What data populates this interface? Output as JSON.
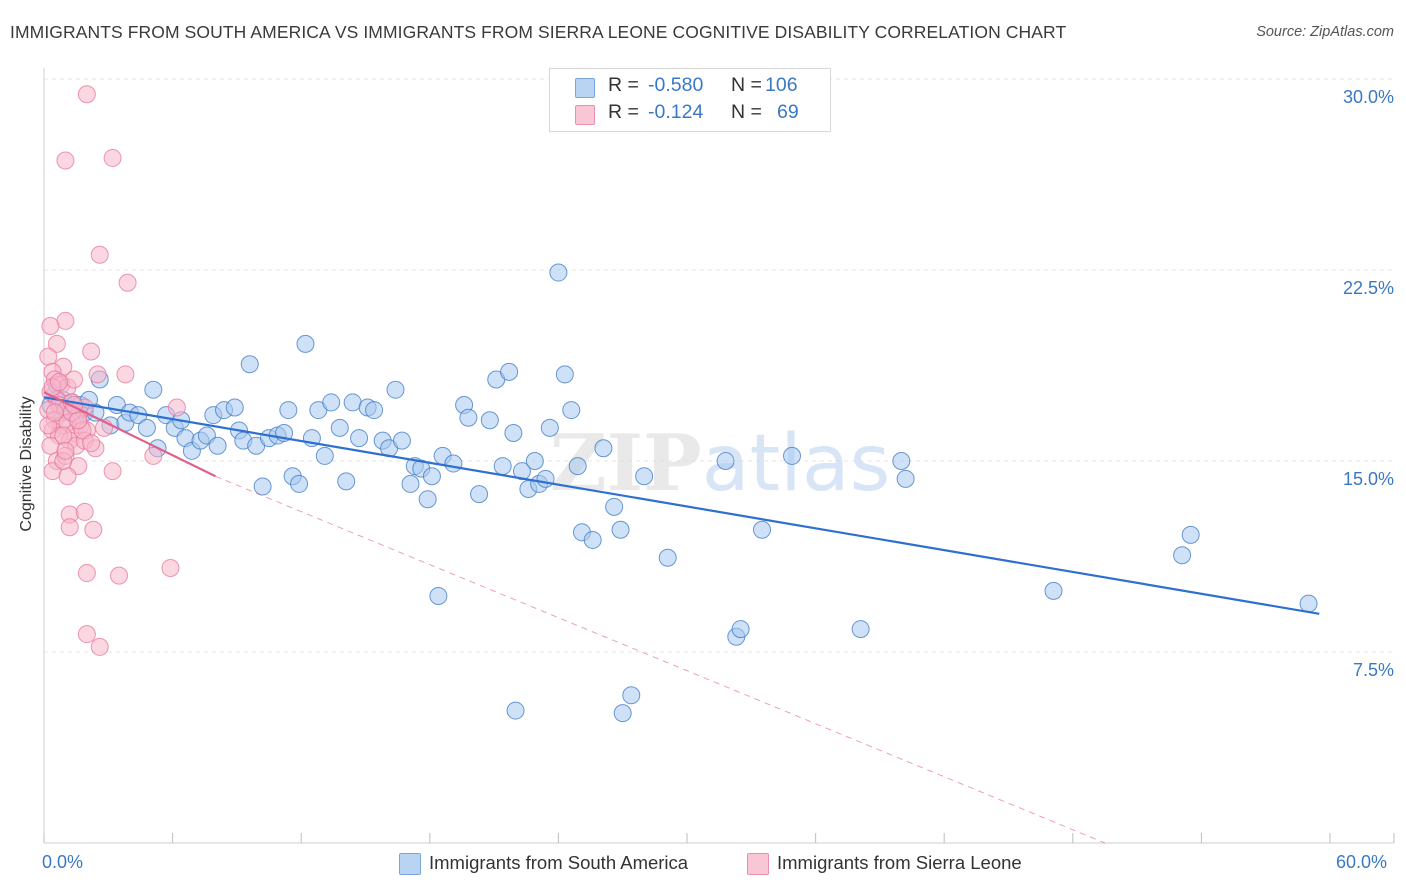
{
  "title": "IMMIGRANTS FROM SOUTH AMERICA VS IMMIGRANTS FROM SIERRA LEONE COGNITIVE DISABILITY CORRELATION CHART",
  "source": "Source: ZipAtlas.com",
  "watermark": "ZIPatlas",
  "colors": {
    "blue": "#3b78c4",
    "blue_fill": "#a8c8f0",
    "blue_line": "#2e6fd0",
    "pink": "#e7749a",
    "pink_fill": "#f7b6ca",
    "pink_line": "#e0608c",
    "grid": "#e6e6e6"
  },
  "legend": {
    "rows": [
      {
        "r_label": "R =",
        "r_value": "-0.580",
        "n_label": "N =",
        "n_value": "106"
      },
      {
        "r_label": "R =",
        "r_value": "-0.124",
        "n_label": "N =",
        "n_value": "69"
      }
    ]
  },
  "bottom_legend": [
    "Immigrants from South America",
    "Immigrants from Sierra Leone"
  ],
  "chart_data": {
    "type": "scatter",
    "title": "IMMIGRANTS FROM SOUTH AMERICA VS IMMIGRANTS FROM SIERRA LEONE COGNITIVE DISABILITY CORRELATION CHART",
    "xlabel": "",
    "ylabel": "Cognitive Disability",
    "xlim": [
      0,
      60
    ],
    "ylim": [
      0,
      30.5
    ],
    "y_ticks": [
      "30.0%",
      "22.5%",
      "15.0%",
      "7.5%"
    ],
    "y_tick_values": [
      30,
      22.5,
      15,
      7.5
    ],
    "x_ticks": [
      "0.0%",
      "60.0%"
    ],
    "x_tick_values": [
      0,
      60
    ],
    "grid": true,
    "legend_position": "top-center",
    "series": [
      {
        "name": "Immigrants from South America",
        "R": -0.58,
        "N": 106,
        "trend": {
          "x": [
            0,
            59.5
          ],
          "y": [
            17.5,
            9.0
          ]
        },
        "points": [
          [
            0.3,
            17.2
          ],
          [
            0.5,
            17.6
          ],
          [
            0.6,
            18.0
          ],
          [
            0.8,
            16.9
          ],
          [
            0.9,
            17.4
          ],
          [
            1.1,
            17.0
          ],
          [
            1.3,
            17.3
          ],
          [
            1.5,
            16.8
          ],
          [
            1.7,
            17.2
          ],
          [
            1.9,
            16.9
          ],
          [
            2.1,
            17.4
          ],
          [
            2.4,
            16.9
          ],
          [
            2.6,
            18.2
          ],
          [
            3.1,
            16.4
          ],
          [
            3.4,
            17.2
          ],
          [
            3.8,
            16.5
          ],
          [
            4.0,
            16.9
          ],
          [
            4.4,
            16.8
          ],
          [
            4.8,
            16.3
          ],
          [
            5.1,
            17.8
          ],
          [
            5.3,
            15.5
          ],
          [
            5.7,
            16.8
          ],
          [
            6.1,
            16.3
          ],
          [
            6.4,
            16.6
          ],
          [
            6.6,
            15.9
          ],
          [
            6.9,
            15.4
          ],
          [
            7.3,
            15.8
          ],
          [
            7.6,
            16.0
          ],
          [
            7.9,
            16.8
          ],
          [
            8.1,
            15.6
          ],
          [
            8.4,
            17.0
          ],
          [
            8.9,
            17.1
          ],
          [
            9.1,
            16.2
          ],
          [
            9.3,
            15.8
          ],
          [
            9.6,
            18.8
          ],
          [
            9.9,
            15.6
          ],
          [
            10.2,
            14.0
          ],
          [
            10.5,
            15.9
          ],
          [
            10.9,
            16.0
          ],
          [
            11.2,
            16.1
          ],
          [
            11.4,
            17.0
          ],
          [
            11.6,
            14.4
          ],
          [
            11.9,
            14.1
          ],
          [
            12.2,
            19.6
          ],
          [
            12.5,
            15.9
          ],
          [
            12.8,
            17.0
          ],
          [
            13.1,
            15.2
          ],
          [
            13.4,
            17.3
          ],
          [
            13.8,
            16.3
          ],
          [
            14.1,
            14.2
          ],
          [
            14.4,
            17.3
          ],
          [
            14.7,
            15.9
          ],
          [
            15.1,
            17.1
          ],
          [
            15.4,
            17.0
          ],
          [
            15.8,
            15.8
          ],
          [
            16.1,
            15.5
          ],
          [
            16.4,
            17.8
          ],
          [
            16.7,
            15.8
          ],
          [
            17.1,
            14.1
          ],
          [
            17.3,
            14.8
          ],
          [
            17.6,
            14.7
          ],
          [
            17.9,
            13.5
          ],
          [
            18.1,
            14.4
          ],
          [
            18.4,
            9.7
          ],
          [
            18.6,
            15.2
          ],
          [
            19.1,
            14.9
          ],
          [
            19.6,
            17.2
          ],
          [
            19.8,
            16.7
          ],
          [
            20.3,
            13.7
          ],
          [
            20.8,
            16.6
          ],
          [
            21.1,
            18.2
          ],
          [
            21.4,
            14.8
          ],
          [
            21.7,
            18.5
          ],
          [
            21.9,
            16.1
          ],
          [
            22.3,
            14.6
          ],
          [
            22.6,
            13.9
          ],
          [
            22.9,
            15.0
          ],
          [
            23.1,
            14.1
          ],
          [
            23.4,
            14.3
          ],
          [
            23.6,
            16.3
          ],
          [
            24.0,
            22.4
          ],
          [
            24.3,
            18.4
          ],
          [
            24.6,
            17.0
          ],
          [
            24.9,
            14.8
          ],
          [
            25.1,
            12.2
          ],
          [
            25.6,
            11.9
          ],
          [
            26.1,
            15.5
          ],
          [
            26.6,
            13.2
          ],
          [
            26.9,
            12.3
          ],
          [
            27.4,
            5.8
          ],
          [
            28.0,
            14.4
          ],
          [
            29.1,
            11.2
          ],
          [
            31.8,
            15.0
          ],
          [
            32.3,
            8.1
          ],
          [
            32.5,
            8.4
          ],
          [
            33.5,
            12.3
          ],
          [
            34.9,
            15.2
          ],
          [
            38.1,
            8.4
          ],
          [
            40.0,
            15.0
          ],
          [
            40.2,
            14.3
          ],
          [
            47.1,
            9.9
          ],
          [
            53.1,
            11.3
          ],
          [
            53.5,
            12.1
          ],
          [
            59.0,
            9.4
          ],
          [
            27.0,
            5.1
          ],
          [
            22.0,
            5.2
          ]
        ]
      },
      {
        "name": "Immigrants from Sierra Leone",
        "R": -0.124,
        "N": 69,
        "trend": {
          "x": [
            0,
            8.0
          ],
          "y": [
            17.7,
            14.4
          ]
        },
        "trend_extension": {
          "x": [
            8.0,
            49.5
          ],
          "y": [
            14.4,
            0
          ]
        },
        "points": [
          [
            2.0,
            29.4
          ],
          [
            1.0,
            26.8
          ],
          [
            3.2,
            26.9
          ],
          [
            2.6,
            23.1
          ],
          [
            3.9,
            22.0
          ],
          [
            1.0,
            20.5
          ],
          [
            0.3,
            20.3
          ],
          [
            0.6,
            19.6
          ],
          [
            0.9,
            18.7
          ],
          [
            2.2,
            19.3
          ],
          [
            0.2,
            19.1
          ],
          [
            0.4,
            18.5
          ],
          [
            0.5,
            18.2
          ],
          [
            0.8,
            18.0
          ],
          [
            1.1,
            17.9
          ],
          [
            1.4,
            18.2
          ],
          [
            0.3,
            17.7
          ],
          [
            0.6,
            17.4
          ],
          [
            0.7,
            17.2
          ],
          [
            1.0,
            17.0
          ],
          [
            1.3,
            17.3
          ],
          [
            1.6,
            16.8
          ],
          [
            1.9,
            17.1
          ],
          [
            0.2,
            17.0
          ],
          [
            0.5,
            16.6
          ],
          [
            0.8,
            16.4
          ],
          [
            1.1,
            16.5
          ],
          [
            1.4,
            16.1
          ],
          [
            1.7,
            16.4
          ],
          [
            2.0,
            16.2
          ],
          [
            0.4,
            16.2
          ],
          [
            0.7,
            16.0
          ],
          [
            1.2,
            15.8
          ],
          [
            1.5,
            15.6
          ],
          [
            1.9,
            15.8
          ],
          [
            2.4,
            15.5
          ],
          [
            0.3,
            15.6
          ],
          [
            0.6,
            15.0
          ],
          [
            1.0,
            15.2
          ],
          [
            1.6,
            14.8
          ],
          [
            0.4,
            14.6
          ],
          [
            1.1,
            14.4
          ],
          [
            3.2,
            14.6
          ],
          [
            1.2,
            12.9
          ],
          [
            1.9,
            13.0
          ],
          [
            1.2,
            12.4
          ],
          [
            2.3,
            12.3
          ],
          [
            2.0,
            10.6
          ],
          [
            3.5,
            10.5
          ],
          [
            5.9,
            10.8
          ],
          [
            2.0,
            8.2
          ],
          [
            2.6,
            7.7
          ],
          [
            3.8,
            18.4
          ],
          [
            6.2,
            17.1
          ],
          [
            5.1,
            15.2
          ],
          [
            2.5,
            18.4
          ],
          [
            0.9,
            15.0
          ],
          [
            1.3,
            16.9
          ],
          [
            0.4,
            17.9
          ],
          [
            0.7,
            18.1
          ],
          [
            1.8,
            16.2
          ],
          [
            2.2,
            15.7
          ],
          [
            0.9,
            16.0
          ],
          [
            1.6,
            16.6
          ],
          [
            0.2,
            16.4
          ],
          [
            1.4,
            17.2
          ],
          [
            0.5,
            16.9
          ],
          [
            2.8,
            16.3
          ],
          [
            1.0,
            15.4
          ]
        ]
      }
    ]
  }
}
